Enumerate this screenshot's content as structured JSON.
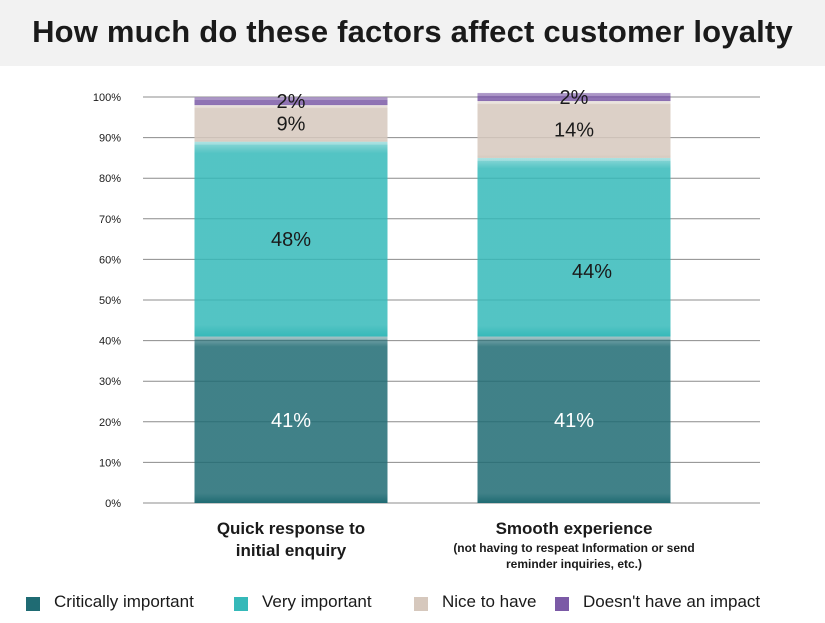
{
  "chart_data": {
    "type": "stacked-bar",
    "title": "How much do these factors affect  customer loyalty",
    "categories": [
      {
        "label": "Quick response to initial enquiry",
        "lines": [
          "Quick response to",
          "initial enquiry"
        ],
        "sub": []
      },
      {
        "label": "Smooth experience",
        "lines": [
          "Smooth experience"
        ],
        "sub": [
          "(not having to respeat Information or send",
          "reminder inquiries, etc.)"
        ]
      }
    ],
    "series": [
      {
        "name": "Critically important",
        "color": "#1f6b73",
        "values": [
          41,
          41
        ],
        "labels": [
          "41%",
          "41%"
        ],
        "label_color": "#ffffff"
      },
      {
        "name": "Very important",
        "color": "#35b9b9",
        "values": [
          48,
          44
        ],
        "labels": [
          "48%",
          "44%"
        ],
        "label_color": "#1a1a1a"
      },
      {
        "name": "Nice to have",
        "color": "#d6c8bd",
        "values": [
          9,
          14
        ],
        "labels": [
          "9%",
          "14%"
        ],
        "label_color": "#1a1a1a"
      },
      {
        "name": "Doesn't have an impact",
        "color": "#7b5aa6",
        "values": [
          2,
          2
        ],
        "labels": [
          "2%",
          "2%"
        ],
        "label_color": "#1a1a1a"
      }
    ],
    "ylim": [
      0,
      100
    ],
    "yticks": [
      0,
      10,
      20,
      30,
      40,
      50,
      60,
      70,
      80,
      90,
      100
    ],
    "ytick_labels": [
      "0%",
      "10%",
      "20%",
      "30%",
      "40%",
      "50%",
      "60%",
      "70%",
      "80%",
      "90%",
      "100%"
    ],
    "grid": true,
    "legend_position": "bottom"
  }
}
